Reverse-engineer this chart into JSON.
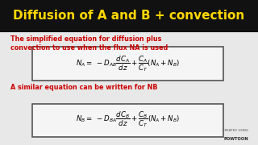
{
  "title": "Diffusion of A and B + convection",
  "title_color": "#FFD700",
  "title_bg": "#111111",
  "bg_color": "#e8e8e8",
  "text1_line1": "The simplified equation for diffusion plus",
  "text1_line2": "convection to use when the flux NA is used",
  "text1_color": "#cc0000",
  "text2": "A similar equation can be written for NB",
  "text2_color": "#cc0000",
  "eq1": "$N_A = \\ -D_{AB}\\dfrac{dC_A}{dz} + \\dfrac{C_A}{C_T}(N_A + N_B)$",
  "eq2": "$N_B = \\ -D_{BA}\\dfrac{dC_B}{dz} + \\dfrac{C_B}{C_T}(N_A + N_B)$",
  "eq_color": "#000000",
  "box_edge_color": "#555555",
  "box_face_color": "#f5f5f5"
}
